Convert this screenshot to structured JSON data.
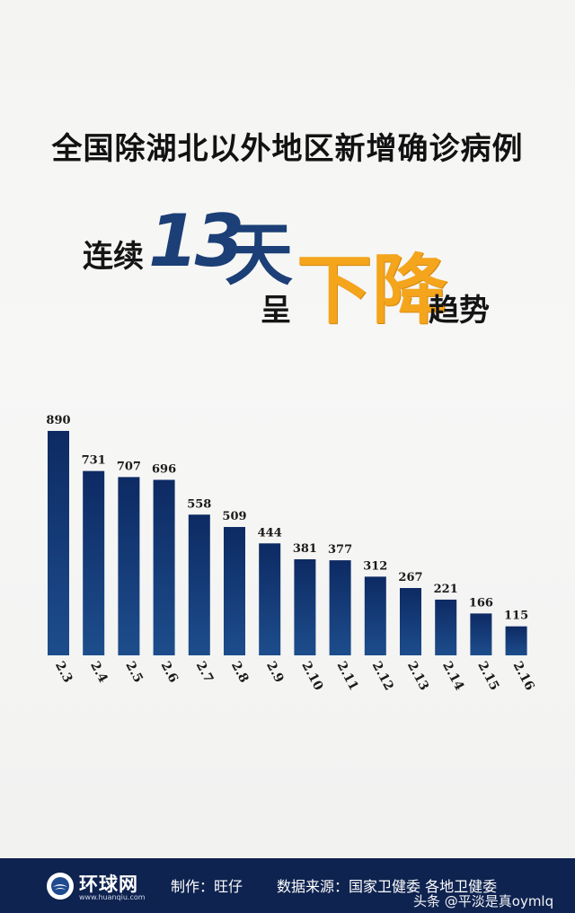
{
  "title": "全国除湖北以外地区新增确诊病例",
  "headline": {
    "part1": "连续",
    "number": "13",
    "unit": "天",
    "part2": "呈",
    "emphasis": "下降",
    "part3": "趋势",
    "number_color": "#1b3f76",
    "emphasis_color": "#f4a51c"
  },
  "chart_data": {
    "type": "bar",
    "title": "",
    "xlabel": "",
    "ylabel": "",
    "categories": [
      "2.3",
      "2.4",
      "2.5",
      "2.6",
      "2.7",
      "2.8",
      "2.9",
      "2.10",
      "2.11",
      "2.12",
      "2.13",
      "2.14",
      "2.15",
      "2.16"
    ],
    "values": [
      890,
      731,
      707,
      696,
      558,
      509,
      444,
      381,
      377,
      312,
      267,
      221,
      166,
      115
    ],
    "ylim": [
      0,
      890
    ],
    "grid": false,
    "legend": "none",
    "bar_color_top": "#0d2a63",
    "bar_color_bottom": "#1d4d8c"
  },
  "footer": {
    "logo_text": "环球网",
    "logo_url": "www.huanqiu.com",
    "maker": "制作：旺仔",
    "source": "数据来源：国家卫健委 各地卫健委",
    "watermark": "头条 @平淡是真oymlq",
    "background": "#0f2350"
  }
}
